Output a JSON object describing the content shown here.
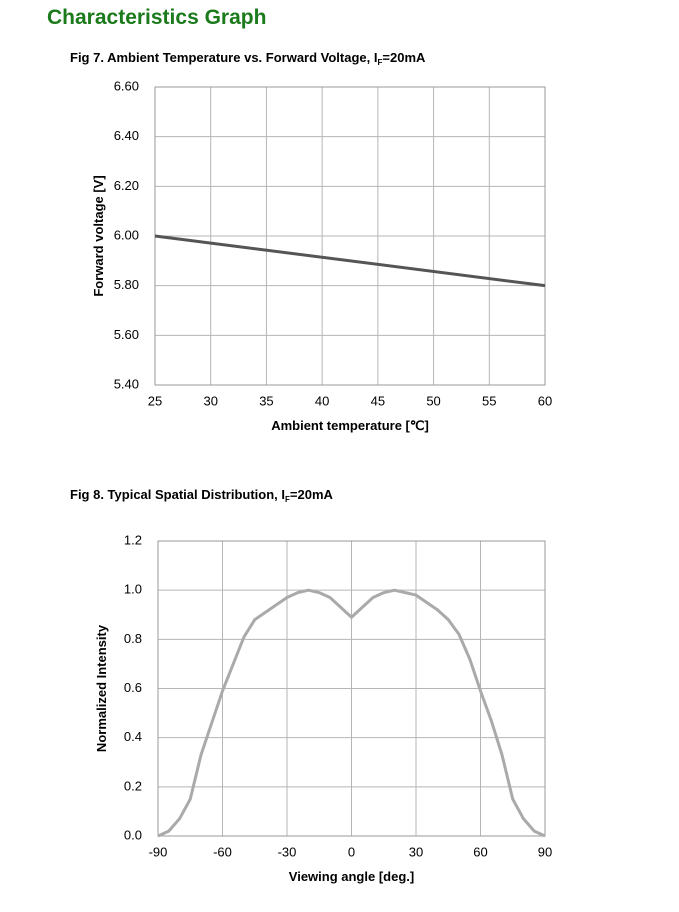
{
  "heading": "Characteristics Graph",
  "chart_data": [
    {
      "type": "line",
      "title": "Fig 7. Ambient Temperature vs. Forward Voltage, I",
      "title_subscript": "F",
      "title_suffix": "=20mA",
      "x_label": "Ambient temperature [℃]",
      "y_label": "Forward voltage [V]",
      "xlim": [
        25,
        60
      ],
      "xticks": [
        25,
        30,
        35,
        40,
        45,
        50,
        55,
        60
      ],
      "ylim": [
        5.4,
        6.6
      ],
      "yticks": [
        {
          "value": 5.4,
          "label": "5.40"
        },
        {
          "value": 5.6,
          "label": "5.60"
        },
        {
          "value": 5.8,
          "label": "5.80"
        },
        {
          "value": 6.0,
          "label": "6.00"
        },
        {
          "value": 6.2,
          "label": "6.20"
        },
        {
          "value": 6.4,
          "label": "6.40"
        },
        {
          "value": 6.6,
          "label": "6.60"
        }
      ],
      "grid": true,
      "color": "#555555",
      "x": [
        25,
        60
      ],
      "values": [
        6.0,
        5.8
      ]
    },
    {
      "type": "line",
      "title": "Fig 8. Typical Spatial Distribution, I",
      "title_subscript": "F",
      "title_suffix": "=20mA",
      "x_label": "Viewing angle [deg.]",
      "y_label": "Normalized Intensity",
      "xlim": [
        -90,
        90
      ],
      "xticks": [
        -90,
        -60,
        -30,
        0,
        30,
        60,
        90
      ],
      "ylim": [
        0,
        1.2
      ],
      "yticks": [
        {
          "value": 0,
          "label": "0.0"
        },
        0.2,
        0.4,
        0.6,
        0.8,
        {
          "value": 1.0,
          "label": "1.0"
        },
        1.2
      ],
      "grid": true,
      "color": "#aaaaaa",
      "x": [
        -90,
        -85,
        -80,
        -75,
        -70,
        -65,
        -60,
        -55,
        -50,
        -45,
        -40,
        -35,
        -30,
        -25,
        -20,
        -15,
        -10,
        -5,
        0,
        5,
        10,
        15,
        20,
        25,
        30,
        35,
        40,
        45,
        50,
        55,
        60,
        65,
        70,
        75,
        80,
        85,
        90
      ],
      "values": [
        0,
        0.02,
        0.07,
        0.15,
        0.33,
        0.46,
        0.59,
        0.7,
        0.81,
        0.88,
        0.91,
        0.94,
        0.97,
        0.99,
        1.0,
        0.99,
        0.97,
        0.93,
        0.89,
        0.93,
        0.97,
        0.99,
        1.0,
        0.99,
        0.98,
        0.95,
        0.92,
        0.88,
        0.82,
        0.72,
        0.59,
        0.47,
        0.33,
        0.15,
        0.07,
        0.02,
        0
      ]
    }
  ]
}
